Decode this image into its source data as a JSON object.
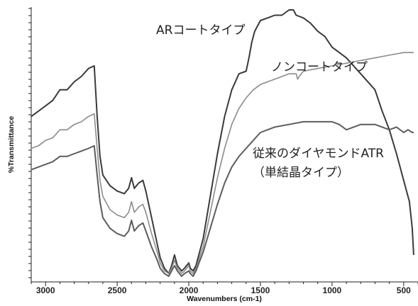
{
  "chart_data": {
    "type": "line",
    "xlabel": "Wavenumbers (cm-1)",
    "ylabel": "%Transmittance",
    "xlim": [
      3100,
      400
    ],
    "x_ticks": [
      3000,
      2500,
      2000,
      1500,
      1000,
      500
    ],
    "x_tick_labels": [
      "3000",
      "2500",
      "2000",
      "1500",
      "1000",
      "500"
    ],
    "ylim": [
      0,
      100
    ],
    "y_tick_labels": [],
    "grid": false,
    "legend": "none",
    "series": [
      {
        "name": "ARコートタイプ",
        "color": "#3a3a3a",
        "points": [
          [
            3100,
            60
          ],
          [
            3050,
            62
          ],
          [
            3000,
            64
          ],
          [
            2950,
            66
          ],
          [
            2900,
            70
          ],
          [
            2850,
            70
          ],
          [
            2800,
            73
          ],
          [
            2750,
            75
          ],
          [
            2700,
            78
          ],
          [
            2660,
            79
          ],
          [
            2640,
            60
          ],
          [
            2620,
            45
          ],
          [
            2600,
            38
          ],
          [
            2550,
            34
          ],
          [
            2500,
            32
          ],
          [
            2450,
            31
          ],
          [
            2420,
            33
          ],
          [
            2400,
            37
          ],
          [
            2380,
            33
          ],
          [
            2350,
            35
          ],
          [
            2320,
            36
          ],
          [
            2300,
            32
          ],
          [
            2260,
            22
          ],
          [
            2220,
            12
          ],
          [
            2200,
            7
          ],
          [
            2170,
            3
          ],
          [
            2140,
            1
          ],
          [
            2120,
            4
          ],
          [
            2100,
            8
          ],
          [
            2080,
            4
          ],
          [
            2050,
            2
          ],
          [
            2030,
            3
          ],
          [
            2000,
            5
          ],
          [
            1990,
            3
          ],
          [
            1970,
            2
          ],
          [
            1950,
            4
          ],
          [
            1900,
            14
          ],
          [
            1850,
            30
          ],
          [
            1800,
            46
          ],
          [
            1750,
            60
          ],
          [
            1700,
            70
          ],
          [
            1650,
            76
          ],
          [
            1600,
            77
          ],
          [
            1580,
            82
          ],
          [
            1560,
            88
          ],
          [
            1540,
            92
          ],
          [
            1500,
            96
          ],
          [
            1450,
            97
          ],
          [
            1400,
            98
          ],
          [
            1350,
            98
          ],
          [
            1300,
            100
          ],
          [
            1270,
            100
          ],
          [
            1250,
            98
          ],
          [
            1200,
            97
          ],
          [
            1150,
            95
          ],
          [
            1100,
            92
          ],
          [
            1050,
            90
          ],
          [
            1000,
            86
          ],
          [
            900,
            82
          ],
          [
            800,
            76
          ],
          [
            700,
            70
          ],
          [
            650,
            62
          ],
          [
            600,
            55
          ],
          [
            550,
            46
          ],
          [
            500,
            36
          ],
          [
            460,
            28
          ],
          [
            440,
            18
          ],
          [
            430,
            8
          ]
        ]
      },
      {
        "name": "ノンコートタイプ",
        "color": "#8c8c8c",
        "points": [
          [
            3100,
            48
          ],
          [
            3050,
            49
          ],
          [
            3000,
            51
          ],
          [
            2950,
            52
          ],
          [
            2900,
            55
          ],
          [
            2850,
            55
          ],
          [
            2800,
            57
          ],
          [
            2750,
            58
          ],
          [
            2700,
            60
          ],
          [
            2660,
            61
          ],
          [
            2640,
            48
          ],
          [
            2620,
            36
          ],
          [
            2600,
            30
          ],
          [
            2550,
            25
          ],
          [
            2500,
            23
          ],
          [
            2450,
            22
          ],
          [
            2420,
            24
          ],
          [
            2400,
            28
          ],
          [
            2380,
            24
          ],
          [
            2350,
            26
          ],
          [
            2320,
            27
          ],
          [
            2300,
            24
          ],
          [
            2260,
            16
          ],
          [
            2220,
            9
          ],
          [
            2200,
            5
          ],
          [
            2170,
            2
          ],
          [
            2140,
            1
          ],
          [
            2120,
            3
          ],
          [
            2100,
            6
          ],
          [
            2080,
            3
          ],
          [
            2050,
            1
          ],
          [
            2030,
            2
          ],
          [
            2000,
            4
          ],
          [
            1990,
            2
          ],
          [
            1970,
            1
          ],
          [
            1950,
            3
          ],
          [
            1900,
            11
          ],
          [
            1850,
            24
          ],
          [
            1800,
            37
          ],
          [
            1750,
            48
          ],
          [
            1700,
            57
          ],
          [
            1650,
            63
          ],
          [
            1600,
            67
          ],
          [
            1550,
            70
          ],
          [
            1500,
            72
          ],
          [
            1450,
            73
          ],
          [
            1400,
            74
          ],
          [
            1350,
            75
          ],
          [
            1300,
            76
          ],
          [
            1250,
            76
          ],
          [
            1240,
            74
          ],
          [
            1230,
            75
          ],
          [
            1200,
            77
          ],
          [
            1100,
            78
          ],
          [
            1000,
            79
          ],
          [
            900,
            80
          ],
          [
            800,
            81
          ],
          [
            700,
            82
          ],
          [
            600,
            83
          ],
          [
            500,
            84
          ],
          [
            430,
            84
          ]
        ]
      },
      {
        "name": "従来のダイヤモンドATR（単結晶タイプ）",
        "color": "#5c5c5c",
        "points": [
          [
            3100,
            40
          ],
          [
            3050,
            41
          ],
          [
            3000,
            42
          ],
          [
            2950,
            43
          ],
          [
            2900,
            45
          ],
          [
            2850,
            45
          ],
          [
            2800,
            46
          ],
          [
            2750,
            47
          ],
          [
            2700,
            48
          ],
          [
            2660,
            49
          ],
          [
            2640,
            38
          ],
          [
            2620,
            28
          ],
          [
            2600,
            22
          ],
          [
            2550,
            18
          ],
          [
            2500,
            16
          ],
          [
            2450,
            15
          ],
          [
            2420,
            17
          ],
          [
            2400,
            21
          ],
          [
            2380,
            17
          ],
          [
            2350,
            19
          ],
          [
            2320,
            20
          ],
          [
            2300,
            17
          ],
          [
            2260,
            11
          ],
          [
            2220,
            6
          ],
          [
            2200,
            3
          ],
          [
            2170,
            1
          ],
          [
            2140,
            0
          ],
          [
            2120,
            2
          ],
          [
            2100,
            4
          ],
          [
            2080,
            2
          ],
          [
            2050,
            0
          ],
          [
            2030,
            1
          ],
          [
            2000,
            2
          ],
          [
            1990,
            1
          ],
          [
            1970,
            0
          ],
          [
            1950,
            2
          ],
          [
            1900,
            9
          ],
          [
            1850,
            18
          ],
          [
            1800,
            27
          ],
          [
            1750,
            35
          ],
          [
            1700,
            41
          ],
          [
            1650,
            45
          ],
          [
            1600,
            48
          ],
          [
            1550,
            51
          ],
          [
            1500,
            54
          ],
          [
            1450,
            55
          ],
          [
            1400,
            56
          ],
          [
            1300,
            57
          ],
          [
            1200,
            58
          ],
          [
            1100,
            58
          ],
          [
            1000,
            58
          ],
          [
            950,
            57
          ],
          [
            900,
            55
          ],
          [
            850,
            56
          ],
          [
            800,
            57
          ],
          [
            700,
            57
          ],
          [
            650,
            56
          ],
          [
            600,
            55
          ],
          [
            550,
            56
          ],
          [
            500,
            54
          ],
          [
            470,
            55
          ],
          [
            440,
            54
          ],
          [
            430,
            54
          ]
        ]
      }
    ],
    "annotations": {
      "ar": "ARコートタイプ",
      "non": "ノンコートタイプ",
      "conv_line1": "従来のダイヤモンドATR",
      "conv_line2": "（単結晶タイプ）"
    }
  }
}
